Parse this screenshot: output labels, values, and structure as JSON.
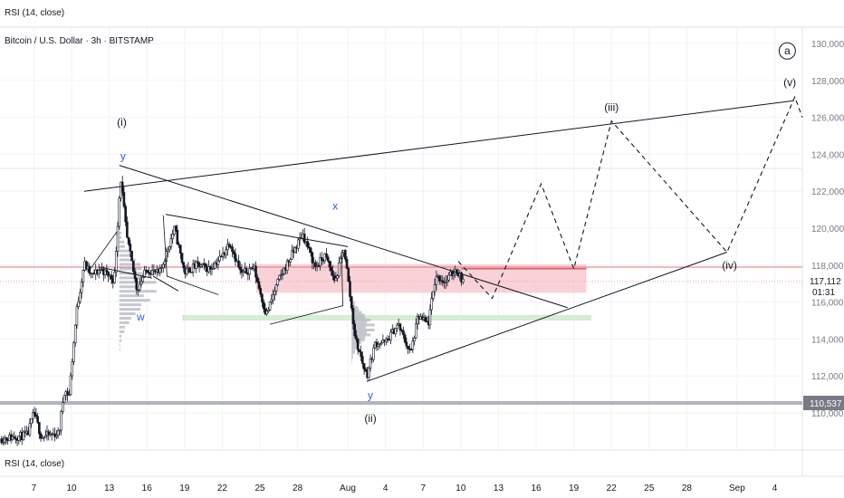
{
  "header": {
    "top_pane_label": "RSI (14, close)",
    "symbol_title": "Bitcoin / U.S. Dollar · 3h · BITSTAMP",
    "bottom_pane_label": "RSI (14, close)"
  },
  "colors": {
    "candle": "#131722",
    "grid": "#f0f3fa",
    "resistance_zone": "#f7c7ce",
    "support_zone": "#cfeccf",
    "red_line": "#e57373",
    "volume_profile": "#b2b5be",
    "label_bg": "#787b86",
    "wave_blue": "#2962ff"
  },
  "chart_data": {
    "type": "candlestick",
    "title": "Bitcoin / U.S. Dollar · 3h · BITSTAMP",
    "ylim": [
      108500,
      131000
    ],
    "y_ticks": [
      110000,
      112000,
      114000,
      116000,
      118000,
      120000,
      122000,
      124000,
      126000,
      128000,
      130000
    ],
    "y_tick_labels": [
      "110,000",
      "112,000",
      "114,000",
      "116,000",
      "118,000",
      "120,000",
      "122,000",
      "124,000",
      "126,000",
      "128,000",
      "130,000"
    ],
    "x_tick_labels": [
      "7",
      "10",
      "13",
      "16",
      "19",
      "22",
      "25",
      "28",
      "Aug",
      "4",
      "7",
      "10",
      "13",
      "16",
      "19",
      "22",
      "25",
      "28",
      "Sep",
      "4"
    ],
    "x_tick_days": [
      7,
      10,
      13,
      16,
      19,
      22,
      25,
      28,
      32,
      35,
      38,
      41,
      44,
      47,
      50,
      53,
      56,
      59,
      63,
      66
    ],
    "x_day_range": [
      4.3,
      68.2
    ],
    "price_path": [
      [
        4.3,
        108600
      ],
      [
        6.5,
        108800
      ],
      [
        7.0,
        110000
      ],
      [
        7.6,
        108700
      ],
      [
        9.0,
        108900
      ],
      [
        9.4,
        111200
      ],
      [
        9.8,
        111000
      ],
      [
        10.4,
        115500
      ],
      [
        11.0,
        118100
      ],
      [
        11.6,
        117400
      ],
      [
        12.3,
        117800
      ],
      [
        13.4,
        117200
      ],
      [
        13.9,
        122800
      ],
      [
        14.4,
        119500
      ],
      [
        15.2,
        116700
      ],
      [
        16.0,
        117800
      ],
      [
        17.0,
        117500
      ],
      [
        18.2,
        120000
      ],
      [
        19.0,
        117600
      ],
      [
        20.0,
        118000
      ],
      [
        21.0,
        117800
      ],
      [
        22.0,
        118500
      ],
      [
        22.6,
        119300
      ],
      [
        23.5,
        117500
      ],
      [
        24.5,
        117900
      ],
      [
        25.5,
        115300
      ],
      [
        26.5,
        117200
      ],
      [
        27.5,
        118500
      ],
      [
        28.4,
        119700
      ],
      [
        29.4,
        117900
      ],
      [
        30.2,
        118500
      ],
      [
        31.0,
        117100
      ],
      [
        31.7,
        119000
      ],
      [
        32.2,
        116200
      ],
      [
        32.6,
        114000
      ],
      [
        33.5,
        112000
      ],
      [
        34.2,
        113800
      ],
      [
        35.0,
        113800
      ],
      [
        36.0,
        114800
      ],
      [
        37.0,
        113200
      ],
      [
        37.6,
        115200
      ],
      [
        38.4,
        114800
      ],
      [
        39.0,
        117400
      ],
      [
        39.8,
        117100
      ],
      [
        40.6,
        117800
      ],
      [
        41.2,
        117112
      ]
    ],
    "last_price": 117112,
    "last_price_label": "117,112",
    "countdown": "01:31",
    "level_line": 110537,
    "level_label": "110,537",
    "resistance_zone": {
      "from": 116500,
      "to": 118050,
      "x_from": 24.7,
      "x_to": 51.0
    },
    "support_zone": {
      "from": 115000,
      "to": 115300,
      "x_from": 18.8,
      "x_to": 51.4
    },
    "red_line_level": 117890,
    "red_line_x_from": 4.3,
    "resistance_line_right": 117800,
    "resistance_line_x_from": 41.0,
    "channel_lines": [
      {
        "from": [
          11.0,
          122000
        ],
        "to": [
          67.5,
          126900
        ]
      },
      {
        "from": [
          13.8,
          123400
        ],
        "to": [
          49.5,
          115700
        ]
      },
      {
        "from": [
          17.5,
          120750
        ],
        "to": [
          32.0,
          119000
        ]
      },
      {
        "from": [
          33.5,
          111700
        ],
        "to": [
          62.2,
          118700
        ]
      },
      {
        "from": [
          16.5,
          117400
        ],
        "to": [
          18.5,
          116600
        ]
      },
      {
        "from": [
          12.2,
          117900
        ],
        "to": [
          16.4,
          117300
        ]
      }
    ],
    "inner_wedges": [
      [
        [
          11.5,
          117800
        ],
        [
          13.6,
          119800
        ],
        [
          13.6,
          119600
        ]
      ],
      [
        [
          17.3,
          120700
        ],
        [
          17.6,
          117400
        ],
        [
          21.7,
          116400
        ]
      ],
      [
        [
          25.8,
          114800
        ],
        [
          31.6,
          115800
        ],
        [
          31.5,
          118700
        ]
      ]
    ],
    "projection_path": [
      [
        40.8,
        118200
      ],
      [
        43.5,
        116200
      ],
      [
        47.4,
        122400
      ],
      [
        50.0,
        117800
      ],
      [
        53.0,
        125800
      ],
      [
        62.2,
        118700
      ],
      [
        67.6,
        127100
      ],
      [
        68.2,
        126000
      ]
    ],
    "wave_labels": [
      {
        "text": "(i)",
        "day": 14.0,
        "price": 125550,
        "color": "#131722"
      },
      {
        "text": "y",
        "day": 14.1,
        "price": 123700,
        "color": "#2962ff"
      },
      {
        "text": "x",
        "day": 31.0,
        "price": 121000,
        "color": "#2962ff"
      },
      {
        "text": "w",
        "day": 15.5,
        "price": 115000,
        "color": "#2962ff"
      },
      {
        "text": "y",
        "day": 33.8,
        "price": 110750,
        "color": "#2962ff"
      },
      {
        "text": "(ii)",
        "day": 33.8,
        "price": 109500,
        "color": "#131722"
      },
      {
        "text": "(iii)",
        "day": 53.0,
        "price": 126350,
        "color": "#131722"
      },
      {
        "text": "(iv)",
        "day": 62.4,
        "price": 117800,
        "color": "#131722"
      },
      {
        "text": "(v)",
        "day": 67.2,
        "price": 127700,
        "color": "#131722"
      },
      {
        "text": "a",
        "day": 67.0,
        "price": 129400,
        "color": "#131722"
      }
    ]
  }
}
